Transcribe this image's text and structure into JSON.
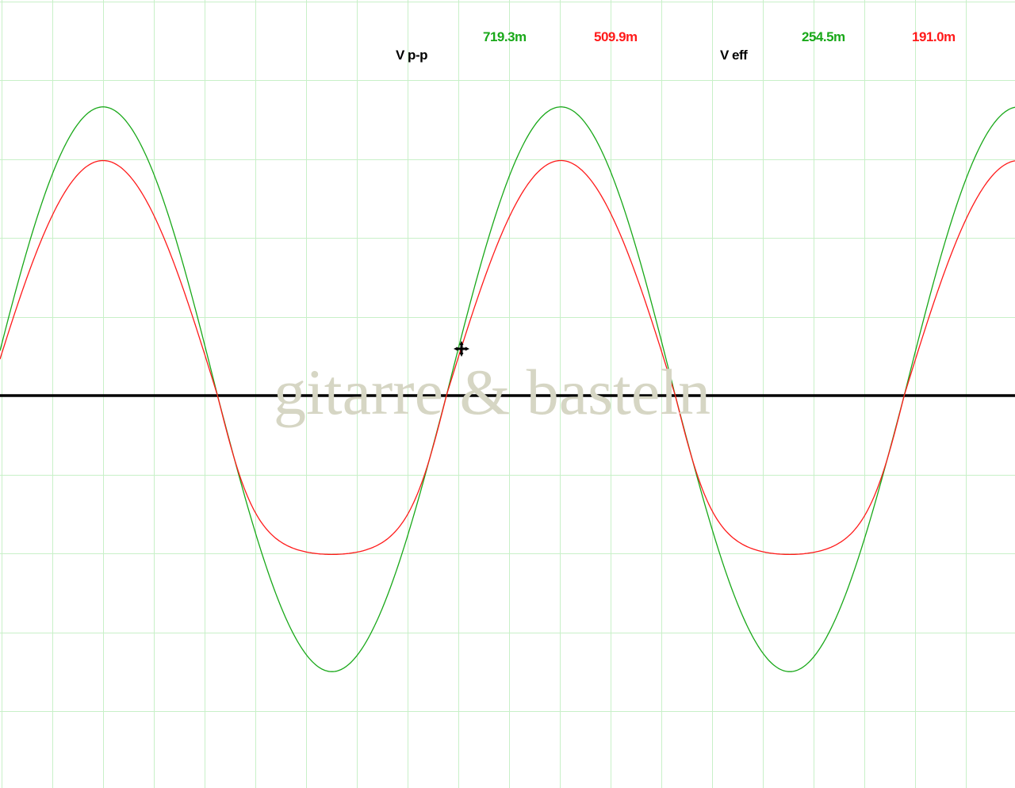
{
  "chart_data": {
    "type": "line",
    "title": "",
    "xlabel": "",
    "ylabel": "",
    "y_per_division_V": 0.1,
    "grid": true,
    "ylim_V": [
      -0.5,
      0.5
    ],
    "series": [
      {
        "color": "#19a819",
        "period_div": 9.02,
        "peak_at_div": 2.0,
        "peak_V": 0.366,
        "trough_V": -0.35,
        "shape": "sine"
      },
      {
        "color": "#ff1a1a",
        "period_div": 9.02,
        "peak_at_div": 2.0,
        "peak_V": 0.298,
        "trough_V": -0.209,
        "shape": "sine with soft-clipped negative half"
      }
    ],
    "zero_line_color": "#000000",
    "grid_color": "#c8f0c8"
  },
  "measurements": {
    "vpp_label": "V p-p",
    "vpp_ch1": "719.3m",
    "vpp_ch2": "509.9m",
    "veff_label": "V eff",
    "veff_ch1": "254.5m",
    "veff_ch2": "191.0m"
  },
  "watermark": "gitarre & basteln",
  "cursor_icon": "move-cursor-icon"
}
